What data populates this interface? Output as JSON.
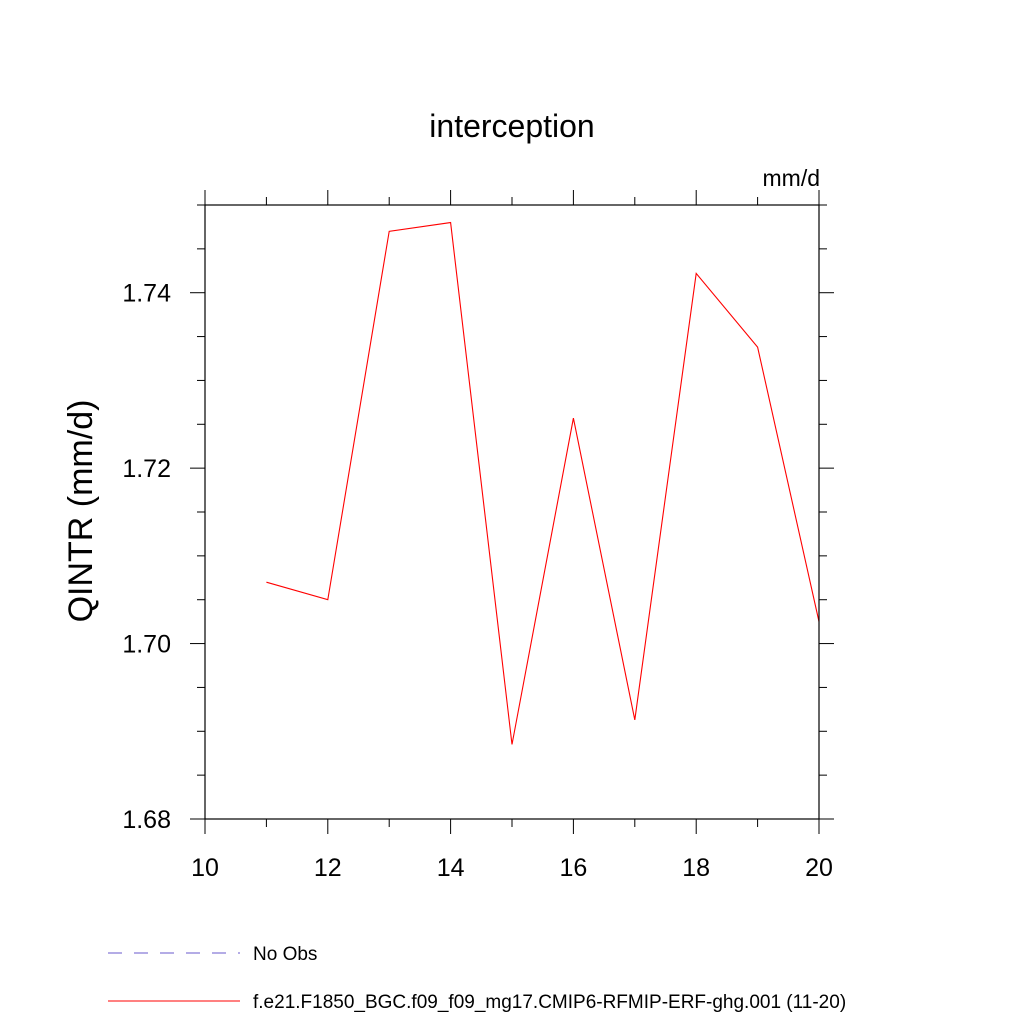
{
  "chart_data": {
    "type": "line",
    "title": "interception",
    "units_label": "mm/d",
    "ylabel": "QINTR  (mm/d)",
    "xlabel": "",
    "xlim": [
      10,
      20
    ],
    "ylim": [
      1.68,
      1.75
    ],
    "x_ticks": [
      10,
      12,
      14,
      16,
      18,
      20
    ],
    "x_tick_labels": [
      "10",
      "12",
      "14",
      "16",
      "18",
      "20"
    ],
    "y_ticks": [
      1.68,
      1.7,
      1.72,
      1.74
    ],
    "y_tick_labels": [
      "1.68",
      "1.70",
      "1.72",
      "1.74"
    ],
    "grid": false,
    "legend_position": "bottom-left",
    "series": [
      {
        "name": "f.e21.F1850_BGC.f09_f09_mg17.CMIP6-RFMIP-ERF-ghg.001 (11-20)",
        "color": "#ff0000",
        "dash": "solid",
        "x": [
          11,
          12,
          13,
          14,
          15,
          16,
          17,
          18,
          19,
          20
        ],
        "y": [
          1.707,
          1.705,
          1.747,
          1.748,
          1.6885,
          1.7257,
          1.6913,
          1.7422,
          1.7338,
          1.7025
        ]
      }
    ],
    "legend": [
      {
        "label": "No Obs",
        "color": "#6a5acd",
        "dash": "dashed"
      },
      {
        "label": "f.e21.F1850_BGC.f09_f09_mg17.CMIP6-RFMIP-ERF-ghg.001 (11-20)",
        "color": "#ff0000",
        "dash": "solid"
      }
    ]
  }
}
